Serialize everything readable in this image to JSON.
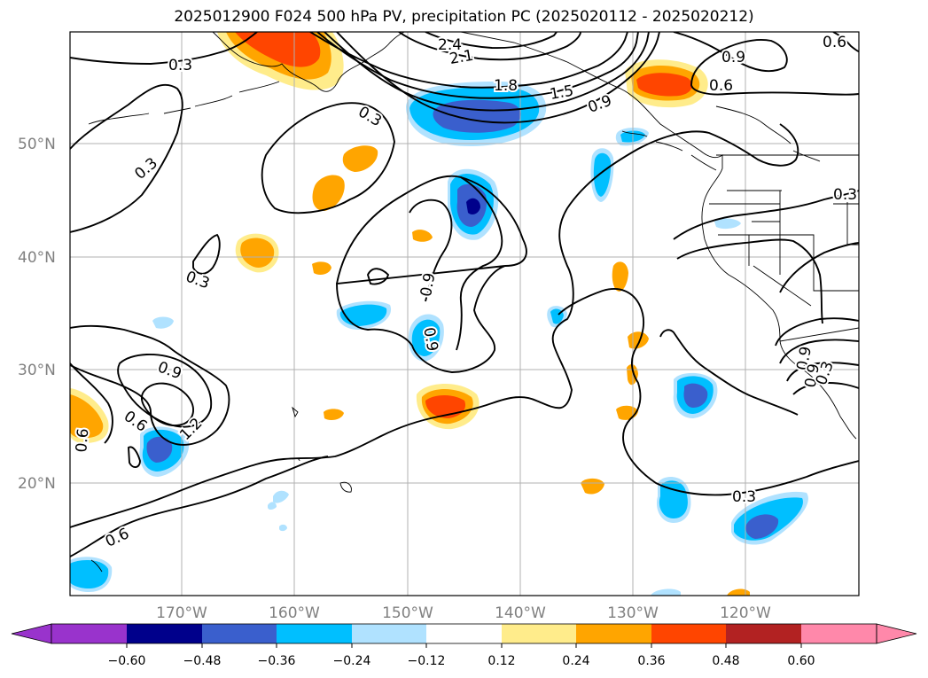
{
  "title": "2025012900 F024 500 hPa PV, precipitation PC (2025020112 - 2025020212)",
  "map": {
    "lat_labels": [
      "50°N",
      "40°N",
      "30°N",
      "20°N"
    ],
    "lon_labels": [
      "170°W",
      "160°W",
      "150°W",
      "140°W",
      "130°W",
      "120°W"
    ],
    "contour_labels": [
      "0.3",
      "0.3",
      "0.3",
      "0.3",
      "0.3",
      "0.3",
      "0.6",
      "0.6",
      "0.6",
      "0.6",
      "0.9",
      "0.9",
      "0.9",
      "0.9",
      "0.9",
      "0.9",
      "1.2",
      "1.5",
      "1.8",
      "2.1",
      "2.4",
      "0.6",
      "0.9",
      "0.3"
    ],
    "grid_color": "#b0b0b0",
    "label_color": "#808080"
  },
  "colorbar": {
    "ticks": [
      "−0.60",
      "−0.48",
      "−0.36",
      "−0.24",
      "−0.12",
      "0.12",
      "0.24",
      "0.36",
      "0.48",
      "0.60"
    ],
    "colors": [
      "#9933cc",
      "#00008b",
      "#3a5fcd",
      "#00bfff",
      "#b0e2ff",
      "#ffffff",
      "#ffec8b",
      "#ffa500",
      "#ff4500",
      "#b22222",
      "#ff88aa"
    ]
  }
}
